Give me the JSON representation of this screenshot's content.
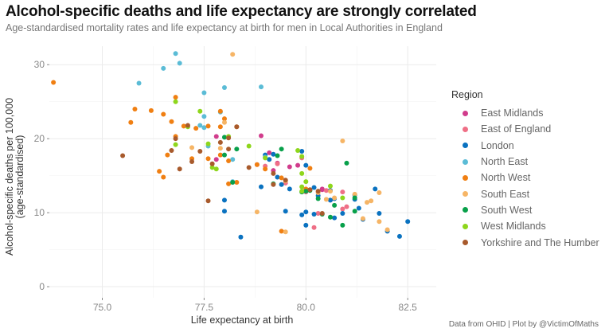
{
  "chart_data": {
    "type": "scatter",
    "title": "Alcohol-specific deaths and life expectancy are strongly correlated",
    "subtitle": "Age-standardised mortality rates and life expectancy at birth for men in Local Authorities in England",
    "xlabel": "Life expectancy at birth",
    "ylabel_line1": "Alcohol-specific deaths per 100,000",
    "ylabel_line2": "(age-standardised)",
    "caption": "Data from OHID | Plot by @VictimOfMaths",
    "xlim": [
      73.7,
      83.2
    ],
    "ylim": [
      -1.5,
      32.5
    ],
    "xticks": [
      75.0,
      77.5,
      80.0,
      82.5
    ],
    "xtick_labels": [
      "75.0",
      "77.5",
      "80.0",
      "82.5"
    ],
    "yticks": [
      0,
      10,
      20,
      30
    ],
    "ytick_labels": [
      "0",
      "10",
      "20",
      "30"
    ],
    "grid": true,
    "legend": {
      "title": "Region",
      "placement": "right",
      "entries": [
        {
          "name": "East Midlands",
          "color": "#d13c8c"
        },
        {
          "name": "East of England",
          "color": "#ef6f86"
        },
        {
          "name": "London",
          "color": "#0a72c0"
        },
        {
          "name": "North East",
          "color": "#5bbcd6"
        },
        {
          "name": "North West",
          "color": "#f07f12"
        },
        {
          "name": "South East",
          "color": "#f6b566"
        },
        {
          "name": "South West",
          "color": "#08a04a"
        },
        {
          "name": "West Midlands",
          "color": "#8ed61c"
        },
        {
          "name": "Yorkshire and The Humber",
          "color": "#a85a2c"
        }
      ]
    },
    "series": [
      {
        "name": "East Midlands",
        "points": [
          [
            77.8,
            17.2
          ],
          [
            78.9,
            20.4
          ],
          [
            77.8,
            20.3
          ],
          [
            79.1,
            18.1
          ],
          [
            79.3,
            16.7
          ],
          [
            79.6,
            16.2
          ],
          [
            79.2,
            15.7
          ],
          [
            79.8,
            16.4
          ],
          [
            80.4,
            13.2
          ],
          [
            80.4,
            13.1
          ]
        ]
      },
      {
        "name": "East of England",
        "points": [
          [
            79.0,
            16.3
          ],
          [
            79.3,
            16.6
          ],
          [
            79.5,
            14.0
          ],
          [
            79.9,
            17.4
          ],
          [
            80.0,
            12.8
          ],
          [
            80.2,
            8.0
          ],
          [
            80.3,
            9.9
          ],
          [
            80.5,
            13.0
          ],
          [
            80.6,
            11.7
          ],
          [
            80.9,
            10.5
          ],
          [
            80.9,
            12.8
          ],
          [
            81.0,
            10.8
          ],
          [
            78.8,
            16.5
          ]
        ]
      },
      {
        "name": "London",
        "points": [
          [
            78.0,
            11.7
          ],
          [
            78.0,
            10.2
          ],
          [
            78.4,
            6.7
          ],
          [
            78.9,
            13.5
          ],
          [
            79.1,
            17.2
          ],
          [
            79.2,
            17.9
          ],
          [
            79.6,
            13.2
          ],
          [
            79.5,
            10.2
          ],
          [
            79.9,
            18.3
          ],
          [
            80.0,
            16.4
          ],
          [
            79.9,
            9.7
          ],
          [
            80.0,
            8.3
          ],
          [
            80.0,
            10.1
          ],
          [
            80.2,
            13.4
          ],
          [
            80.2,
            9.8
          ],
          [
            80.3,
            12.3
          ],
          [
            80.6,
            11.7
          ],
          [
            80.7,
            9.3
          ],
          [
            80.7,
            11.9
          ],
          [
            80.9,
            9.9
          ],
          [
            81.2,
            12.4
          ],
          [
            81.2,
            11.8
          ],
          [
            81.3,
            10.6
          ],
          [
            81.4,
            9.1
          ],
          [
            81.7,
            13.2
          ],
          [
            81.8,
            9.9
          ],
          [
            82.0,
            7.5
          ],
          [
            82.3,
            6.8
          ],
          [
            82.5,
            8.8
          ],
          [
            79.3,
            14.8
          ],
          [
            79.4,
            13.8
          ],
          [
            80.6,
            13.0
          ],
          [
            79.0,
            17.8
          ]
        ]
      },
      {
        "name": "North East",
        "points": [
          [
            75.9,
            27.5
          ],
          [
            76.5,
            29.5
          ],
          [
            76.8,
            31.5
          ],
          [
            76.9,
            30.2
          ],
          [
            77.5,
            26.2
          ],
          [
            78.0,
            26.9
          ],
          [
            78.9,
            27.0
          ],
          [
            77.6,
            19.0
          ],
          [
            77.4,
            21.8
          ],
          [
            77.5,
            23.0
          ],
          [
            77.9,
            23.6
          ],
          [
            78.2,
            17.2
          ],
          [
            78.2,
            14.2
          ],
          [
            77.5,
            21.5
          ],
          [
            79.0,
            17.5
          ]
        ]
      },
      {
        "name": "North West",
        "points": [
          [
            73.8,
            27.6
          ],
          [
            75.7,
            22.2
          ],
          [
            75.8,
            24.0
          ],
          [
            76.2,
            23.8
          ],
          [
            76.5,
            23.3
          ],
          [
            76.7,
            22.3
          ],
          [
            76.8,
            25.6
          ],
          [
            77.0,
            21.7
          ],
          [
            77.3,
            21.4
          ],
          [
            77.2,
            17.3
          ],
          [
            76.6,
            17.8
          ],
          [
            76.4,
            15.6
          ],
          [
            76.5,
            14.8
          ],
          [
            76.8,
            20.3
          ],
          [
            77.6,
            21.7
          ],
          [
            77.9,
            23.7
          ],
          [
            78.0,
            22.7
          ],
          [
            77.6,
            17.3
          ],
          [
            78.1,
            17.0
          ],
          [
            78.3,
            14.1
          ],
          [
            78.1,
            13.9
          ],
          [
            79.0,
            15.9
          ],
          [
            78.8,
            16.5
          ],
          [
            80.0,
            13.2
          ],
          [
            80.1,
            16.0
          ],
          [
            79.4,
            7.5
          ],
          [
            77.9,
            21.6
          ],
          [
            78.3,
            21.6
          ],
          [
            77.9,
            17.8
          ],
          [
            79.4,
            14.7
          ]
        ]
      },
      {
        "name": "South East",
        "points": [
          [
            78.2,
            31.4
          ],
          [
            78.0,
            22.2
          ],
          [
            77.9,
            18.7
          ],
          [
            78.8,
            10.1
          ],
          [
            79.5,
            7.4
          ],
          [
            80.5,
            11.8
          ],
          [
            80.6,
            12.9
          ],
          [
            80.9,
            19.7
          ],
          [
            81.2,
            12.5
          ],
          [
            81.5,
            11.4
          ],
          [
            81.4,
            9.2
          ],
          [
            81.8,
            12.7
          ],
          [
            81.8,
            8.8
          ],
          [
            82.0,
            7.7
          ],
          [
            80.3,
            12.7
          ],
          [
            77.2,
            18.8
          ],
          [
            79.5,
            14.3
          ],
          [
            80.7,
            12.0
          ],
          [
            81.6,
            11.6
          ]
        ]
      },
      {
        "name": "South West",
        "points": [
          [
            78.0,
            20.2
          ],
          [
            78.0,
            17.8
          ],
          [
            78.2,
            14.1
          ],
          [
            79.2,
            13.9
          ],
          [
            79.3,
            17.7
          ],
          [
            79.4,
            18.6
          ],
          [
            80.0,
            12.9
          ],
          [
            80.1,
            13.0
          ],
          [
            79.9,
            12.8
          ],
          [
            80.3,
            11.9
          ],
          [
            80.4,
            9.8
          ],
          [
            80.6,
            9.4
          ],
          [
            80.9,
            8.3
          ],
          [
            81.0,
            16.7
          ],
          [
            81.2,
            10.2
          ],
          [
            81.2,
            12.0
          ],
          [
            80.7,
            11.0
          ],
          [
            78.3,
            18.6
          ]
        ]
      },
      {
        "name": "West Midlands",
        "points": [
          [
            76.8,
            25.0
          ],
          [
            76.8,
            19.2
          ],
          [
            77.1,
            21.6
          ],
          [
            77.4,
            23.7
          ],
          [
            77.6,
            19.3
          ],
          [
            77.7,
            16.1
          ],
          [
            77.8,
            15.9
          ],
          [
            78.1,
            20.3
          ],
          [
            78.6,
            19.0
          ],
          [
            79.0,
            17.4
          ],
          [
            79.8,
            18.4
          ],
          [
            79.9,
            17.6
          ],
          [
            79.9,
            15.3
          ],
          [
            79.9,
            13.5
          ],
          [
            80.0,
            14.2
          ],
          [
            80.6,
            13.6
          ],
          [
            79.9,
            12.9
          ],
          [
            80.9,
            12.0
          ]
        ]
      },
      {
        "name": "Yorkshire and The Humber",
        "points": [
          [
            75.5,
            17.7
          ],
          [
            76.8,
            20.0
          ],
          [
            76.9,
            15.9
          ],
          [
            77.1,
            21.8
          ],
          [
            77.4,
            18.3
          ],
          [
            77.6,
            11.6
          ],
          [
            77.7,
            16.6
          ],
          [
            77.9,
            19.5
          ],
          [
            78.1,
            18.6
          ],
          [
            78.3,
            21.6
          ],
          [
            78.1,
            20.1
          ],
          [
            78.6,
            16.1
          ],
          [
            79.2,
            15.3
          ],
          [
            79.5,
            14.4
          ],
          [
            79.2,
            13.8
          ],
          [
            80.3,
            12.9
          ],
          [
            80.4,
            9.9
          ],
          [
            80.1,
            13.1
          ],
          [
            77.2,
            16.9
          ],
          [
            76.7,
            18.4
          ]
        ]
      }
    ]
  }
}
